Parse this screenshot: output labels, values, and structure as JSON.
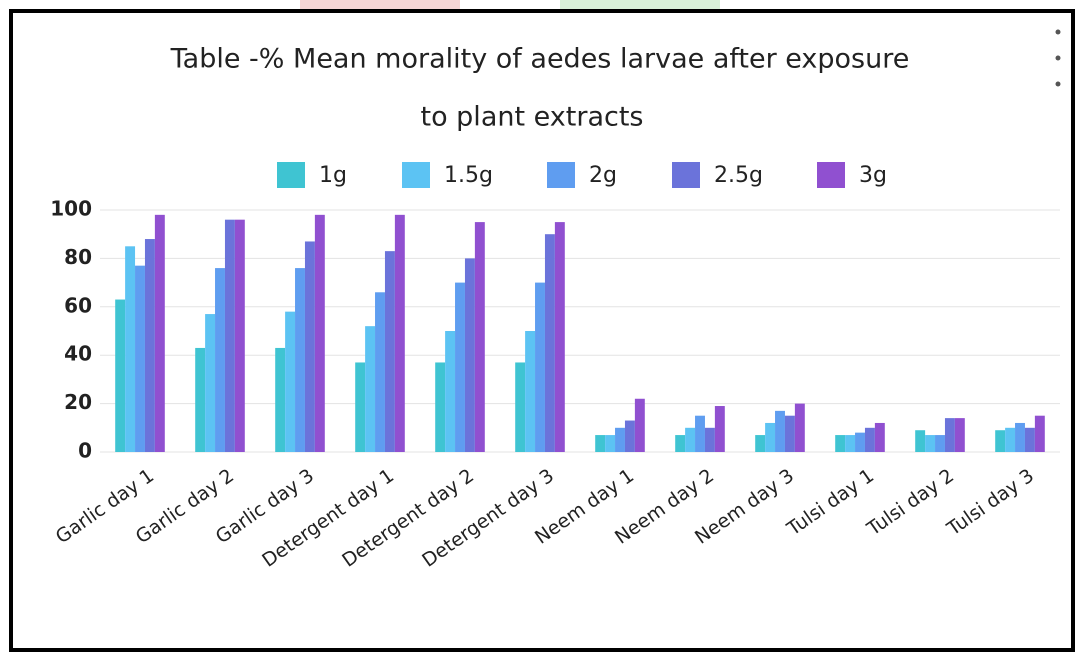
{
  "chart_data": {
    "type": "bar",
    "title": [
      "Table -% Mean morality of aedes larvae after exposure",
      "to plant extracts"
    ],
    "categories": [
      "Garlic day 1",
      "Garlic day 2",
      "Garlic day 3",
      "Detergent day 1",
      "Detergent day 2",
      "Detergent day 3",
      "Neem day 1",
      "Neem day 2",
      "Neem day 3",
      "Tulsi day 1",
      "Tulsi day 2",
      "Tulsi day 3"
    ],
    "series": [
      {
        "name": "1g",
        "color": "#3fc4d2",
        "values": [
          63,
          43,
          43,
          37,
          37,
          37,
          7,
          7,
          7,
          7,
          9,
          9
        ]
      },
      {
        "name": "1.5g",
        "color": "#5cc3f3",
        "values": [
          85,
          57,
          58,
          52,
          50,
          50,
          7,
          10,
          12,
          7,
          7,
          10
        ]
      },
      {
        "name": "2g",
        "color": "#5f9df0",
        "values": [
          77,
          76,
          76,
          66,
          70,
          70,
          10,
          15,
          17,
          8,
          7,
          12
        ]
      },
      {
        "name": "2.5g",
        "color": "#6b73da",
        "values": [
          88,
          96,
          87,
          83,
          80,
          90,
          13,
          10,
          15,
          10,
          14,
          10
        ]
      },
      {
        "name": "3g",
        "color": "#9050d0",
        "values": [
          98,
          96,
          98,
          98,
          95,
          95,
          22,
          19,
          20,
          12,
          14,
          15
        ]
      }
    ],
    "ylim": [
      0,
      100
    ],
    "yticks": [
      0,
      20,
      40,
      60,
      80,
      100
    ],
    "grid": true,
    "legend": "top"
  }
}
